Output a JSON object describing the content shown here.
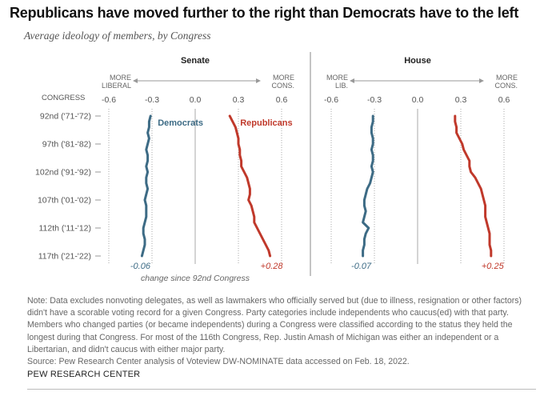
{
  "title": "Republicans have moved further to the right than Democrats have to the left",
  "subtitle": "Average ideology of members, by Congress",
  "note": "Note: Data excludes nonvoting delegates, as well as lawmakers who officially served but (due to illness, resignation or other factors) didn't have a scorable voting record for a given Congress. Party categories include independents who caucus(ed) with that party. Members who changed parties (or became independents) during a Congress were classified according to the status they held the longest during that Congress. For most of the 116th Congress, Rep. Justin Amash of Michigan was either an independent or a Libertarian, and didn't caucus with either major party.",
  "source": "Source: Pew Research Center analysis of Voteview DW-NOMINATE data accessed on Feb. 18, 2022.",
  "brand": "PEW RESEARCH CENTER",
  "colors": {
    "democrat": "#3d6b85",
    "republican": "#c0392b"
  },
  "chart_data": {
    "type": "line",
    "row_axis_label": "CONGRESS",
    "congress_labels": [
      "92nd ('71-'72)",
      "97th ('81-'82)",
      "102nd ('91-'92)",
      "107th ('01-'02)",
      "112th ('11-'12)",
      "117th ('21-'22)"
    ],
    "congress_numbers": [
      92,
      97,
      102,
      107,
      112,
      117
    ],
    "x_ticks": [
      "-0.6",
      "-0.3",
      "0.0",
      "0.3",
      "0.6"
    ],
    "xlim": [
      -0.65,
      0.65
    ],
    "change_caption": "change since 92nd Congress",
    "panels": [
      {
        "name": "Senate",
        "left_dir": "MORE LIBERAL",
        "right_dir": "MORE CONS.",
        "series": [
          {
            "name": "Democrats",
            "party": "democrat",
            "change_label": "-0.06",
            "values": [
              -0.31,
              -0.32,
              -0.32,
              -0.33,
              -0.32,
              -0.33,
              -0.34,
              -0.33,
              -0.33,
              -0.34,
              -0.33,
              -0.34,
              -0.34,
              -0.33,
              -0.34,
              -0.35,
              -0.34,
              -0.34,
              -0.34,
              -0.35,
              -0.36,
              -0.36,
              -0.35,
              -0.35,
              -0.36,
              -0.37
            ]
          },
          {
            "name": "Republicans",
            "party": "republican",
            "change_label": "+0.28",
            "values": [
              0.24,
              0.26,
              0.28,
              0.29,
              0.3,
              0.3,
              0.31,
              0.31,
              0.32,
              0.32,
              0.34,
              0.36,
              0.37,
              0.38,
              0.38,
              0.37,
              0.39,
              0.4,
              0.41,
              0.41,
              0.43,
              0.45,
              0.47,
              0.49,
              0.51,
              0.52
            ]
          }
        ]
      },
      {
        "name": "House",
        "left_dir": "MORE LIB.",
        "right_dir": "MORE CONS.",
        "series": [
          {
            "name": "Democrats",
            "party": "democrat",
            "change_label": "-0.07",
            "values": [
              -0.31,
              -0.31,
              -0.32,
              -0.32,
              -0.31,
              -0.31,
              -0.32,
              -0.31,
              -0.31,
              -0.32,
              -0.31,
              -0.32,
              -0.33,
              -0.35,
              -0.36,
              -0.37,
              -0.37,
              -0.36,
              -0.37,
              -0.38,
              -0.34,
              -0.36,
              -0.37,
              -0.37,
              -0.38,
              -0.38
            ]
          },
          {
            "name": "Republicans",
            "party": "republican",
            "change_label": "+0.25",
            "values": [
              0.26,
              0.26,
              0.27,
              0.27,
              0.29,
              0.31,
              0.32,
              0.34,
              0.36,
              0.36,
              0.37,
              0.4,
              0.42,
              0.44,
              0.45,
              0.46,
              0.47,
              0.47,
              0.47,
              0.48,
              0.49,
              0.5,
              0.5,
              0.5,
              0.51,
              0.51
            ]
          }
        ]
      }
    ]
  }
}
